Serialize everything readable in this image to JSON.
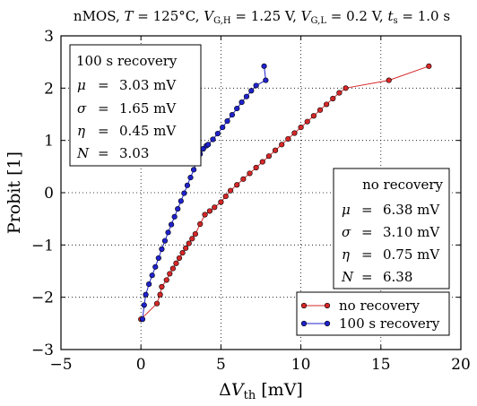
{
  "chart_data": {
    "type": "scatter",
    "title": {
      "device": "nMOS",
      "T_sym": "T",
      "T_val": " = 125°C",
      "VH_sym": "V",
      "VH_sub": "G,H",
      "VH_val": " = 1.25 V",
      "VL_sym": "V",
      "VL_sub": "G,L",
      "VL_val": " = 0.2 V",
      "ts_sym": "t",
      "ts_sub": "s",
      "ts_val": " = 1.0 s"
    },
    "xlabel": {
      "delta": "Δ",
      "sym": "V",
      "sub": "th",
      "unit": " [mV]"
    },
    "ylabel": "Probit [1]",
    "xlim": [
      -5,
      20
    ],
    "ylim": [
      -3,
      3
    ],
    "xticks": [
      -5,
      0,
      5,
      10,
      15,
      20
    ],
    "yticks": [
      -3,
      -2,
      -1,
      0,
      1,
      2,
      3
    ],
    "grid": true,
    "legend": {
      "placement": "lower-right",
      "entries": [
        "no recovery",
        "100 s recovery"
      ]
    },
    "stats_boxes": [
      {
        "placement": "top-left",
        "title": "100 s recovery",
        "rows": [
          {
            "sym": "μ",
            "val": "3.03 mV"
          },
          {
            "sym": "σ",
            "val": "1.65 mV"
          },
          {
            "sym": "η",
            "val": "0.45 mV"
          },
          {
            "sym": "N",
            "val": "3.03"
          }
        ]
      },
      {
        "placement": "middle-right",
        "title": "no recovery",
        "rows": [
          {
            "sym": "μ",
            "val": "6.38 mV"
          },
          {
            "sym": "σ",
            "val": "3.10 mV"
          },
          {
            "sym": "η",
            "val": "0.75 mV"
          },
          {
            "sym": "N",
            "val": "6.38"
          }
        ]
      }
    ],
    "series": [
      {
        "name": "no recovery",
        "color": "#d62728",
        "x": [
          0.0,
          1.0,
          1.2,
          1.3,
          1.6,
          1.8,
          2.0,
          2.2,
          2.4,
          2.6,
          2.8,
          3.0,
          3.2,
          3.4,
          3.7,
          4.0,
          4.3,
          4.6,
          5.0,
          5.3,
          5.6,
          6.0,
          6.4,
          6.8,
          7.2,
          7.6,
          8.0,
          8.4,
          8.8,
          9.2,
          9.6,
          10.0,
          10.4,
          10.8,
          11.2,
          11.6,
          12.0,
          12.4,
          12.8,
          15.5,
          18.0
        ],
        "y": [
          -2.42,
          -2.12,
          -1.95,
          -1.8,
          -1.67,
          -1.55,
          -1.45,
          -1.35,
          -1.25,
          -1.15,
          -1.06,
          -0.97,
          -0.88,
          -0.79,
          -0.6,
          -0.42,
          -0.35,
          -0.28,
          -0.18,
          -0.07,
          0.04,
          0.15,
          0.26,
          0.37,
          0.48,
          0.59,
          0.7,
          0.81,
          0.92,
          1.03,
          1.14,
          1.25,
          1.36,
          1.47,
          1.58,
          1.69,
          1.8,
          1.91,
          2.0,
          2.15,
          2.42
        ]
      },
      {
        "name": "100 s recovery",
        "color": "#1f22cc",
        "x": [
          0.1,
          0.2,
          0.3,
          0.5,
          0.7,
          0.9,
          1.1,
          1.3,
          1.5,
          1.7,
          1.9,
          2.1,
          2.3,
          2.5,
          2.7,
          2.9,
          3.1,
          3.3,
          3.5,
          3.7,
          3.9,
          4.1,
          4.2,
          4.5,
          4.8,
          5.1,
          5.4,
          5.7,
          6.0,
          6.3,
          6.6,
          6.9,
          7.2,
          7.8,
          7.7
        ],
        "y": [
          -2.42,
          -2.15,
          -1.95,
          -1.75,
          -1.58,
          -1.42,
          -1.25,
          -1.08,
          -0.92,
          -0.76,
          -0.61,
          -0.46,
          -0.31,
          -0.16,
          -0.01,
          0.14,
          0.29,
          0.44,
          0.59,
          0.74,
          0.84,
          0.9,
          0.92,
          1.02,
          1.13,
          1.25,
          1.37,
          1.49,
          1.61,
          1.73,
          1.84,
          1.95,
          2.05,
          2.15,
          2.42
        ]
      }
    ]
  }
}
